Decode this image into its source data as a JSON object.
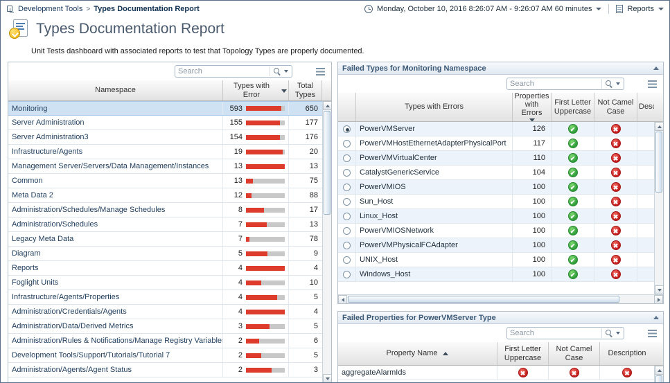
{
  "breadcrumb": {
    "root": "Development Tools",
    "separator": ">",
    "current": "Types Documentation Report"
  },
  "topbar": {
    "time_range": "Monday, October 10, 2016 8:26:07 AM - 9:26:07 AM 60 minutes",
    "reports_label": "Reports"
  },
  "header": {
    "title": "Types Documentation Report",
    "subtitle": "Unit Tests dashboard with associated reports to test that Topology Types are properly documented."
  },
  "colors": {
    "bar_red": "#dd3b2b",
    "bar_track": "#c8c8c8",
    "pass_green": "#2f9e3a",
    "fail_red": "#c41e1e",
    "selected_row": "#cfe2f3"
  },
  "namespace_table": {
    "search_placeholder": "Search",
    "columns": [
      "Namespace",
      "Types with Error",
      "Total Types"
    ],
    "sorted_column": "Types with Error",
    "sort_direction": "desc",
    "rows": [
      {
        "name": "Monitoring",
        "errors": 593,
        "total": 650,
        "selected": true
      },
      {
        "name": "Server Administration",
        "errors": 155,
        "total": 177,
        "selected": false
      },
      {
        "name": "Server Administration3",
        "errors": 154,
        "total": 176,
        "selected": false
      },
      {
        "name": "Infrastructure/Agents",
        "errors": 19,
        "total": 20,
        "selected": false
      },
      {
        "name": "Management Server/Servers/Data Management/Instances",
        "errors": 13,
        "total": 13,
        "selected": false
      },
      {
        "name": "Common",
        "errors": 13,
        "total": 75,
        "selected": false
      },
      {
        "name": "Meta Data 2",
        "errors": 12,
        "total": 88,
        "selected": false
      },
      {
        "name": "Administration/Schedules/Manage Schedules",
        "errors": 8,
        "total": 17,
        "selected": false
      },
      {
        "name": "Administration/Schedules",
        "errors": 7,
        "total": 13,
        "selected": false
      },
      {
        "name": "Legacy Meta Data",
        "errors": 7,
        "total": 78,
        "selected": false
      },
      {
        "name": "Diagram",
        "errors": 5,
        "total": 9,
        "selected": false
      },
      {
        "name": "Reports",
        "errors": 4,
        "total": 4,
        "selected": false
      },
      {
        "name": "Foglight Units",
        "errors": 4,
        "total": 10,
        "selected": false
      },
      {
        "name": "Infrastructure/Agents/Properties",
        "errors": 4,
        "total": 5,
        "selected": false
      },
      {
        "name": "Administration/Credentials/Agents",
        "errors": 4,
        "total": 4,
        "selected": false
      },
      {
        "name": "Administration/Data/Derived Metrics",
        "errors": 3,
        "total": 5,
        "selected": false
      },
      {
        "name": "Administration/Rules & Notifications/Manage Registry Variables",
        "errors": 2,
        "total": 6,
        "selected": false
      },
      {
        "name": "Development Tools/Support/Tutorials/Tutorial 7",
        "errors": 2,
        "total": 5,
        "selected": false
      },
      {
        "name": "Administration/Agents/Agent Status",
        "errors": 2,
        "total": 3,
        "selected": false
      }
    ]
  },
  "failed_types": {
    "title": "Failed Types for Monitoring Namespace",
    "search_placeholder": "Search",
    "columns": [
      "Types with Errors",
      "Properties with Errors",
      "First Letter Uppercase",
      "Not Camel Case",
      "Description"
    ],
    "sorted_column": "Properties with Errors",
    "sort_direction": "desc",
    "rows": [
      {
        "name": "PowerVMServer",
        "count": 126,
        "first_letter": "pass",
        "camel": "fail",
        "selected": true
      },
      {
        "name": "PowerVMHostEthernetAdapterPhysicalPort",
        "count": 117,
        "first_letter": "pass",
        "camel": "fail",
        "selected": false
      },
      {
        "name": "PowerVMVirtualCenter",
        "count": 110,
        "first_letter": "pass",
        "camel": "fail",
        "selected": false
      },
      {
        "name": "CatalystGenericService",
        "count": 104,
        "first_letter": "pass",
        "camel": "fail",
        "selected": false
      },
      {
        "name": "PowerVMIOS",
        "count": 100,
        "first_letter": "pass",
        "camel": "fail",
        "selected": false
      },
      {
        "name": "Sun_Host",
        "count": 100,
        "first_letter": "pass",
        "camel": "fail",
        "selected": false
      },
      {
        "name": "Linux_Host",
        "count": 100,
        "first_letter": "pass",
        "camel": "fail",
        "selected": false
      },
      {
        "name": "PowerVMIOSNetwork",
        "count": 100,
        "first_letter": "pass",
        "camel": "fail",
        "selected": false
      },
      {
        "name": "PowerVMPhysicalFCAdapter",
        "count": 100,
        "first_letter": "pass",
        "camel": "fail",
        "selected": false
      },
      {
        "name": "UNIX_Host",
        "count": 100,
        "first_letter": "pass",
        "camel": "fail",
        "selected": false
      },
      {
        "name": "Windows_Host",
        "count": 100,
        "first_letter": "pass",
        "camel": "fail",
        "selected": false
      }
    ]
  },
  "failed_properties": {
    "title": "Failed Properties for PowerVMServer Type",
    "search_placeholder": "Search",
    "columns": [
      "Property Name",
      "First Letter Uppercase",
      "Not Camel Case",
      "Description"
    ],
    "sorted_column": "Property Name",
    "sort_direction": "asc",
    "rows": [
      {
        "name": "aggregateAlarmIds",
        "first_letter": "fail",
        "camel": "fail",
        "description": "fail"
      }
    ]
  }
}
